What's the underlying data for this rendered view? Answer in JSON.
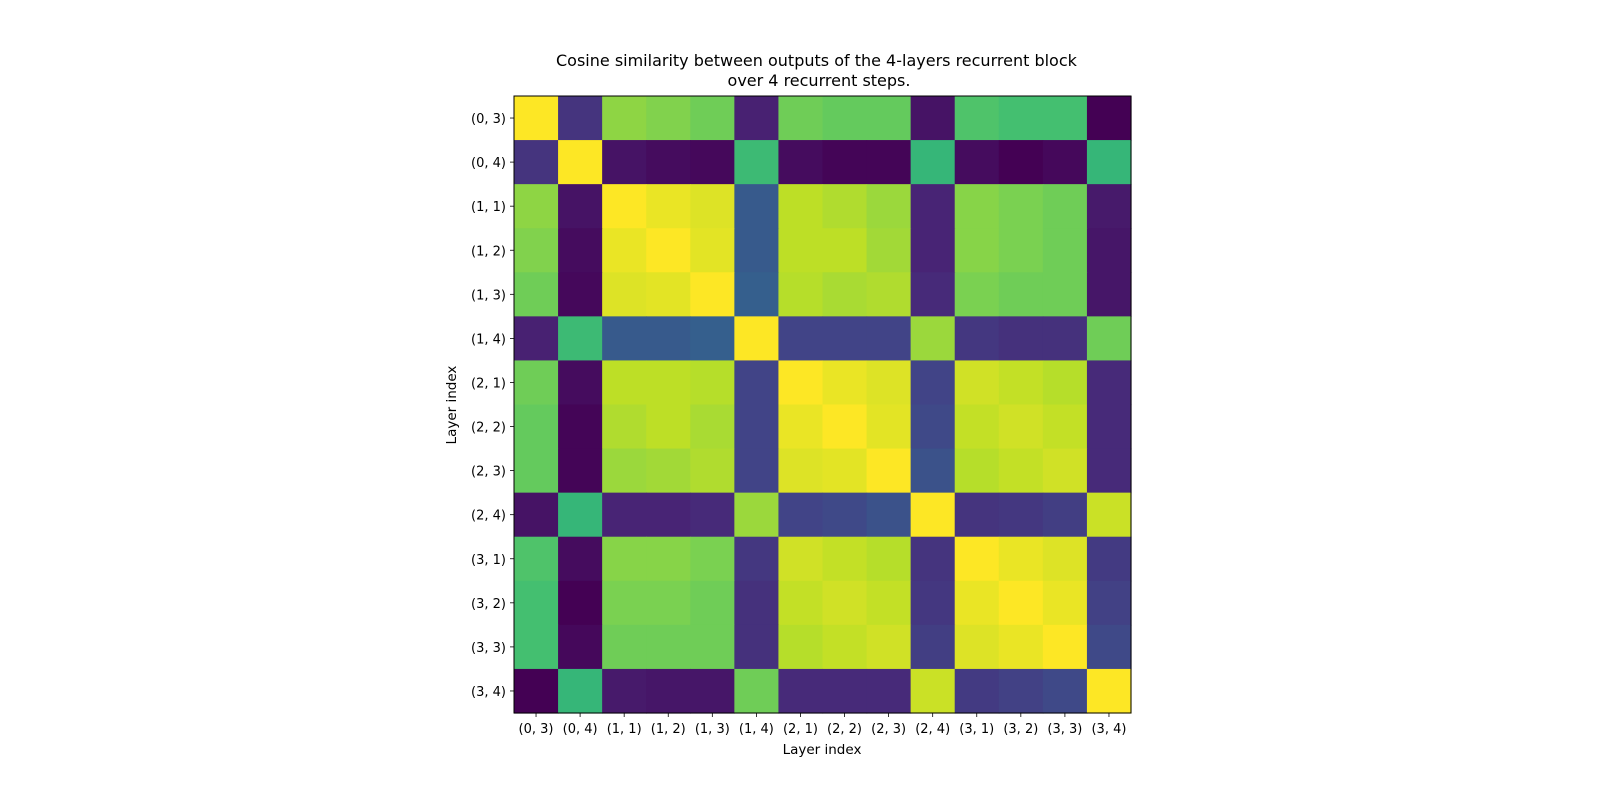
{
  "chart_data": {
    "type": "heatmap",
    "title": "Cosine similarity between outputs of the 4-layers recurrent block\nover 4 recurrent steps.",
    "xlabel": "Layer index",
    "ylabel": "Layer index",
    "x_tick_labels": [
      "(0, 3)",
      "(0, 4)",
      "(1, 1)",
      "(1, 2)",
      "(1, 3)",
      "(1, 4)",
      "(2, 1)",
      "(2, 2)",
      "(2, 3)",
      "(2, 4)",
      "(3, 1)",
      "(3, 2)",
      "(3, 3)",
      "(3, 4)"
    ],
    "y_tick_labels": [
      "(0, 3)",
      "(0, 4)",
      "(1, 1)",
      "(1, 2)",
      "(1, 3)",
      "(1, 4)",
      "(2, 1)",
      "(2, 2)",
      "(2, 3)",
      "(2, 4)",
      "(3, 1)",
      "(3, 2)",
      "(3, 3)",
      "(3, 4)"
    ],
    "colormap": "viridis",
    "colorbar": false,
    "values": [
      [
        1.0,
        0.15,
        0.83,
        0.81,
        0.78,
        0.09,
        0.78,
        0.76,
        0.76,
        0.05,
        0.72,
        0.7,
        0.7,
        0.0
      ],
      [
        0.15,
        1.0,
        0.05,
        0.03,
        0.02,
        0.68,
        0.03,
        0.01,
        0.01,
        0.66,
        0.03,
        0.0,
        0.02,
        0.66
      ],
      [
        0.83,
        0.05,
        1.0,
        0.97,
        0.95,
        0.28,
        0.9,
        0.88,
        0.85,
        0.1,
        0.82,
        0.8,
        0.78,
        0.07
      ],
      [
        0.81,
        0.03,
        0.97,
        1.0,
        0.96,
        0.28,
        0.9,
        0.9,
        0.86,
        0.1,
        0.82,
        0.8,
        0.78,
        0.06
      ],
      [
        0.78,
        0.02,
        0.95,
        0.96,
        1.0,
        0.3,
        0.89,
        0.87,
        0.88,
        0.12,
        0.8,
        0.78,
        0.78,
        0.06
      ],
      [
        0.09,
        0.68,
        0.28,
        0.28,
        0.3,
        1.0,
        0.2,
        0.2,
        0.2,
        0.85,
        0.16,
        0.14,
        0.14,
        0.78
      ],
      [
        0.78,
        0.03,
        0.9,
        0.9,
        0.89,
        0.2,
        1.0,
        0.97,
        0.95,
        0.2,
        0.93,
        0.91,
        0.89,
        0.12
      ],
      [
        0.76,
        0.01,
        0.88,
        0.9,
        0.87,
        0.2,
        0.97,
        1.0,
        0.96,
        0.22,
        0.91,
        0.93,
        0.91,
        0.12
      ],
      [
        0.76,
        0.01,
        0.85,
        0.86,
        0.88,
        0.2,
        0.95,
        0.96,
        1.0,
        0.25,
        0.89,
        0.91,
        0.93,
        0.12
      ],
      [
        0.05,
        0.66,
        0.1,
        0.1,
        0.12,
        0.85,
        0.2,
        0.22,
        0.25,
        1.0,
        0.15,
        0.16,
        0.18,
        0.92
      ],
      [
        0.72,
        0.03,
        0.82,
        0.82,
        0.8,
        0.16,
        0.93,
        0.91,
        0.89,
        0.15,
        1.0,
        0.97,
        0.95,
        0.17
      ],
      [
        0.7,
        0.0,
        0.8,
        0.8,
        0.78,
        0.14,
        0.91,
        0.93,
        0.91,
        0.16,
        0.97,
        1.0,
        0.97,
        0.19
      ],
      [
        0.7,
        0.02,
        0.78,
        0.78,
        0.78,
        0.14,
        0.89,
        0.91,
        0.93,
        0.18,
        0.95,
        0.97,
        1.0,
        0.22
      ],
      [
        0.0,
        0.66,
        0.07,
        0.06,
        0.06,
        0.78,
        0.12,
        0.12,
        0.12,
        0.92,
        0.17,
        0.19,
        0.22,
        1.0
      ]
    ]
  }
}
